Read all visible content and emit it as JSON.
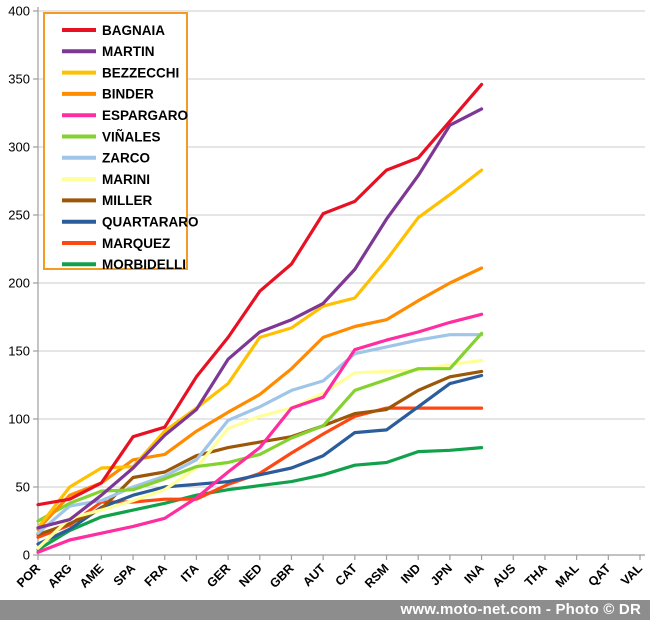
{
  "footer": {
    "text": "www.moto-net.com - Photo © DR"
  },
  "chart_data": {
    "type": "line",
    "title": "",
    "xlabel": "",
    "ylabel": "",
    "x_categories": [
      "POR",
      "ARG",
      "AME",
      "SPA",
      "FRA",
      "ITA",
      "GER",
      "NED",
      "GBR",
      "AUT",
      "CAT",
      "RSM",
      "IND",
      "JPN",
      "INA",
      "AUS",
      "THA",
      "MAL",
      "QAT",
      "VAL"
    ],
    "races_completed": 15,
    "ylim": [
      0,
      400
    ],
    "ytick_step": 50,
    "grid": "horizontal",
    "gridline_color": "#cccccc",
    "axis_color": "#9e9e9e",
    "legend_position": "top-left",
    "legend_border_color": "#f59a23",
    "series": [
      {
        "name": "BAGNAIA",
        "color": "#e81123",
        "values": [
          37,
          41,
          53,
          87,
          94,
          131,
          160,
          194,
          214,
          251,
          260,
          283,
          292,
          319,
          346
        ]
      },
      {
        "name": "MARTIN",
        "color": "#7e3794",
        "values": [
          20,
          26,
          44,
          64,
          88,
          107,
          144,
          164,
          173,
          185,
          210,
          247,
          279,
          316,
          328
        ]
      },
      {
        "name": "BEZZECCHI",
        "color": "#ffc000",
        "values": [
          20,
          50,
          64,
          65,
          91,
          108,
          126,
          160,
          167,
          183,
          189,
          217,
          248,
          265,
          283
        ]
      },
      {
        "name": "BINDER",
        "color": "#ff8c00",
        "values": [
          19,
          44,
          53,
          70,
          74,
          91,
          105,
          118,
          137,
          160,
          168,
          173,
          187,
          200,
          211
        ]
      },
      {
        "name": "ESPARGARO",
        "color": "#ff2da0",
        "values": [
          2,
          11,
          16,
          21,
          27,
          42,
          61,
          79,
          108,
          116,
          151,
          158,
          164,
          171,
          177
        ]
      },
      {
        "name": "VIÑALES",
        "color": "#84d22f",
        "values": [
          25,
          38,
          47,
          48,
          56,
          65,
          68,
          74,
          86,
          95,
          121,
          129,
          137,
          137,
          163
        ]
      },
      {
        "name": "ZARCO",
        "color": "#9fc5e8",
        "values": [
          16,
          36,
          40,
          50,
          58,
          70,
          99,
          109,
          121,
          128,
          148,
          153,
          158,
          162,
          162
        ]
      },
      {
        "name": "MARINI",
        "color": "#ffff99",
        "values": [
          5,
          27,
          33,
          40,
          48,
          64,
          93,
          102,
          108,
          119,
          134,
          135,
          136,
          140,
          143
        ]
      },
      {
        "name": "MILLER",
        "color": "#9c5708",
        "values": [
          15,
          23,
          34,
          57,
          61,
          73,
          79,
          83,
          87,
          95,
          104,
          107,
          121,
          131,
          135
        ]
      },
      {
        "name": "QUARTARARO",
        "color": "#2b5d9b",
        "values": [
          8,
          19,
          35,
          44,
          50,
          52,
          54,
          59,
          64,
          73,
          90,
          92,
          109,
          126,
          132
        ]
      },
      {
        "name": "MARQUEZ",
        "color": "#ff4713",
        "values": [
          13,
          22,
          39,
          39,
          41,
          41,
          52,
          60,
          75,
          89,
          102,
          108,
          108,
          108,
          108
        ]
      },
      {
        "name": "MORBIDELLI",
        "color": "#12a14b",
        "values": [
          4,
          18,
          28,
          33,
          38,
          44,
          48,
          51,
          54,
          59,
          66,
          68,
          76,
          77,
          79
        ]
      }
    ]
  }
}
